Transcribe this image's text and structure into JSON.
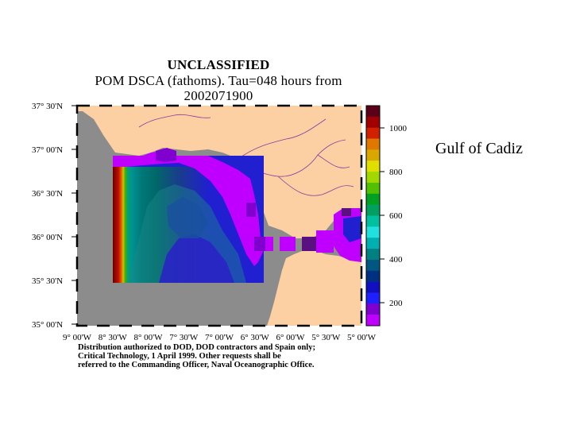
{
  "header": {
    "line1": "UNCLASSIFIED",
    "line2": "POM DSCA (fathoms). Tau=048 hours from",
    "line3": "2002071900"
  },
  "side_label": "Gulf of Cadiz",
  "distribution_note": [
    "Distribution authorized to DOD, DOD contractors and Spain only;",
    "Critical Technology, 1 April 1999. Other requests shall be",
    "referred to the Commanding Officer, Naval Oceanographic Office."
  ],
  "map": {
    "lat_labels": [
      "37° 30'N",
      "37° 00'N",
      "36° 30'N",
      "36° 00'N",
      "35° 30'N",
      "35° 00'N"
    ],
    "lon_labels": [
      "9° 00'W",
      "8° 30'W",
      "8° 00'W",
      "7° 30'W",
      "7° 00'W",
      "6° 30'W",
      "6° 00'W",
      "5° 30'W",
      "5° 00'W"
    ],
    "colors": {
      "land": "#fcd0a2",
      "no_data": "#8c8c8c",
      "frame": "#000000"
    }
  },
  "colorbar": {
    "tick_labels": [
      "1000",
      "800",
      "600",
      "400",
      "200"
    ],
    "colors": [
      "#5a0018",
      "#a00000",
      "#d02000",
      "#e07800",
      "#d8a800",
      "#e0e000",
      "#a0d800",
      "#50c000",
      "#00a020",
      "#00a060",
      "#00c0a0",
      "#20e0e0",
      "#00b0b0",
      "#008080",
      "#005880",
      "#003080",
      "#1010c0",
      "#2020ff",
      "#8000d0",
      "#c000ff"
    ]
  }
}
